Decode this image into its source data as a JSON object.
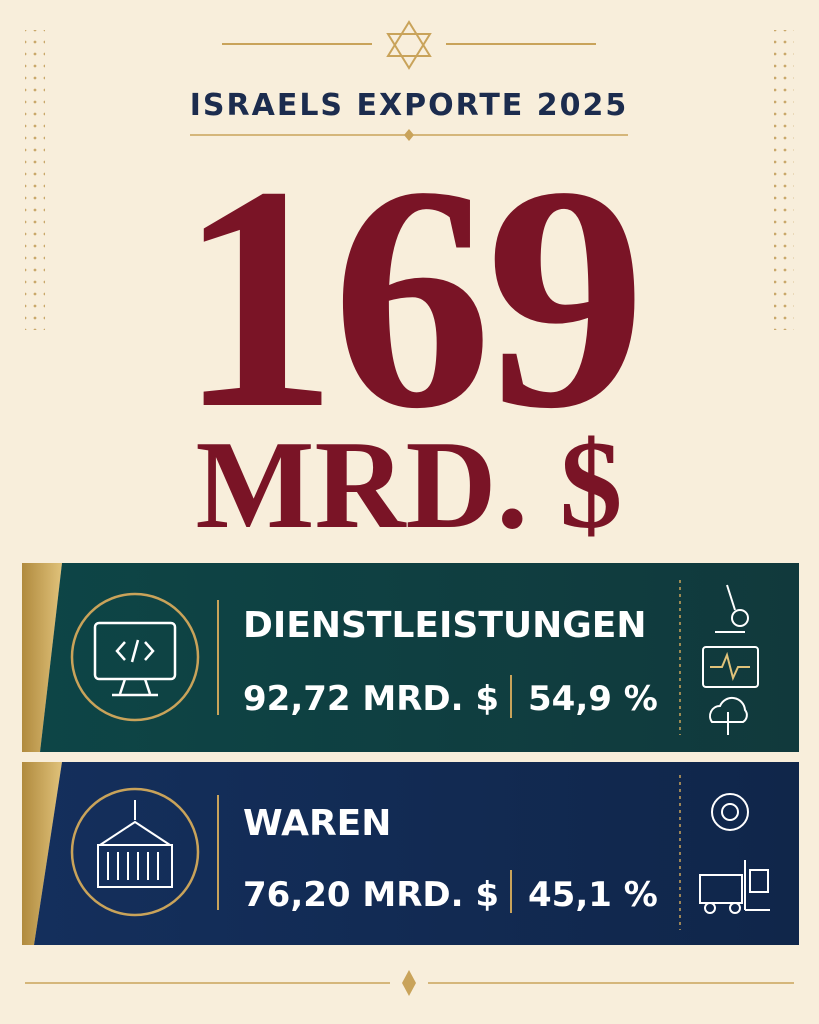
{
  "header": {
    "title": "ISRAELS EXPORTE 2025"
  },
  "total": {
    "value": "169",
    "unit": "MRD. $"
  },
  "rows": [
    {
      "label": "DIENSTLEISTUNGEN",
      "amount": "92,72 MRD. $",
      "share": "54,9 %"
    },
    {
      "label": "WAREN",
      "amount": "76,20 MRD. $",
      "share": "45,1 %"
    }
  ]
}
